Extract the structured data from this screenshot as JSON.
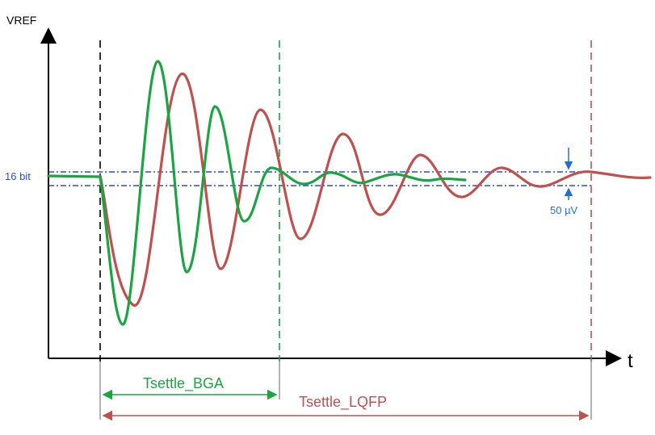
{
  "axes": {
    "y_label": "VREF",
    "x_label": "t"
  },
  "band": {
    "label": "16 bit",
    "tolerance_label": "50 µV"
  },
  "intervals": {
    "bga_label": "Tsettle_BGA",
    "lqfp_label": "Tsettle_LQFP"
  },
  "colors": {
    "bga": "#1aa542",
    "lqfp": "#c0504d",
    "band": "#2a4fd0",
    "axis": "#000000",
    "annotation": "#1f6fd6"
  }
}
